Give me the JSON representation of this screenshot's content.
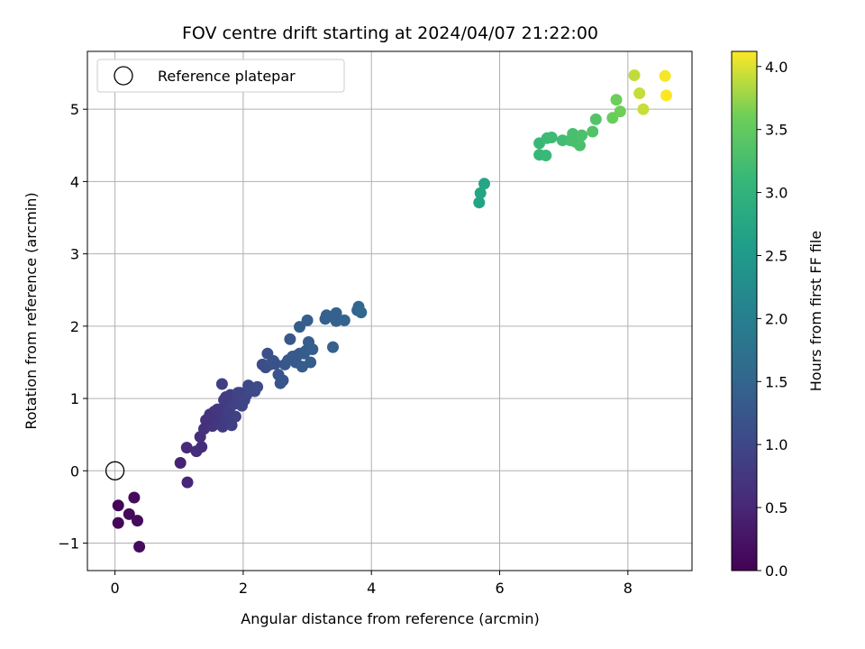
{
  "chart_data": {
    "type": "scatter",
    "title": "FOV centre drift starting at 2024/04/07 21:22:00",
    "xlabel": "Angular distance from reference (arcmin)",
    "ylabel": "Rotation from reference (arcmin)",
    "xlim": [
      -0.43,
      9.0
    ],
    "ylim": [
      -1.38,
      5.8
    ],
    "xticks": [
      0,
      2,
      4,
      6,
      8
    ],
    "yticks": [
      -1,
      0,
      1,
      2,
      3,
      4,
      5
    ],
    "grid": true,
    "legend": {
      "placement": "top-left",
      "entries": [
        "Reference platepar"
      ]
    },
    "reference_point": {
      "x": 0,
      "y": 0,
      "label": "Reference platepar"
    },
    "colorbar": {
      "label": "Hours from first FF file",
      "colormap": "viridis",
      "range": [
        0.0,
        4.12
      ],
      "ticks": [
        0.0,
        0.5,
        1.0,
        1.5,
        2.0,
        2.5,
        3.0,
        3.5,
        4.0
      ],
      "tick_labels": [
        "0.0",
        "0.5",
        "1.0",
        "1.5",
        "2.0",
        "2.5",
        "3.0",
        "3.5",
        "4.0"
      ]
    },
    "points": [
      [
        0.05,
        -0.48,
        0.05
      ],
      [
        0.05,
        -0.72,
        0.08
      ],
      [
        0.22,
        -0.6,
        0.1
      ],
      [
        0.3,
        -0.37,
        0.12
      ],
      [
        0.35,
        -0.69,
        0.13
      ],
      [
        0.38,
        -1.05,
        0.15
      ],
      [
        1.02,
        0.11,
        0.45
      ],
      [
        1.13,
        -0.16,
        0.48
      ],
      [
        1.12,
        0.32,
        0.55
      ],
      [
        1.27,
        0.27,
        0.58
      ],
      [
        1.35,
        0.33,
        0.6
      ],
      [
        1.33,
        0.47,
        0.62
      ],
      [
        1.39,
        0.58,
        0.65
      ],
      [
        1.45,
        0.72,
        0.68
      ],
      [
        1.48,
        0.78,
        0.7
      ],
      [
        1.52,
        0.62,
        0.72
      ],
      [
        1.55,
        0.82,
        0.73
      ],
      [
        1.58,
        0.65,
        0.75
      ],
      [
        1.62,
        0.7,
        0.77
      ],
      [
        1.65,
        0.78,
        0.78
      ],
      [
        1.68,
        0.61,
        0.8
      ],
      [
        1.7,
        0.98,
        0.82
      ],
      [
        1.72,
        0.88,
        0.83
      ],
      [
        1.75,
        0.73,
        0.85
      ],
      [
        1.78,
        0.83,
        0.86
      ],
      [
        1.8,
        1.05,
        0.88
      ],
      [
        1.82,
        0.63,
        0.88
      ],
      [
        1.85,
        0.92,
        0.9
      ],
      [
        1.88,
        0.75,
        0.91
      ],
      [
        1.9,
        0.95,
        0.92
      ],
      [
        1.92,
        1.0,
        0.93
      ],
      [
        1.95,
        1.08,
        0.94
      ],
      [
        1.98,
        0.9,
        0.96
      ],
      [
        2.02,
        0.98,
        0.98
      ],
      [
        2.05,
        1.05,
        1.0
      ],
      [
        2.08,
        1.18,
        1.02
      ],
      [
        2.12,
        1.12,
        1.03
      ],
      [
        2.18,
        1.1,
        1.05
      ],
      [
        2.22,
        1.16,
        1.06
      ],
      [
        1.67,
        1.2,
        0.88
      ],
      [
        1.42,
        0.7,
        0.66
      ],
      [
        1.5,
        0.75,
        0.69
      ],
      [
        1.6,
        0.85,
        0.76
      ],
      [
        1.73,
        1.02,
        0.84
      ],
      [
        1.92,
        1.08,
        0.93
      ],
      [
        2.3,
        1.47,
        1.1
      ],
      [
        2.35,
        1.43,
        1.12
      ],
      [
        2.38,
        1.62,
        1.14
      ],
      [
        2.42,
        1.47,
        1.15
      ],
      [
        2.47,
        1.52,
        1.17
      ],
      [
        2.5,
        1.48,
        1.18
      ],
      [
        2.55,
        1.33,
        1.2
      ],
      [
        2.58,
        1.21,
        1.21
      ],
      [
        2.62,
        1.25,
        1.22
      ],
      [
        2.65,
        1.47,
        1.24
      ],
      [
        2.7,
        1.53,
        1.26
      ],
      [
        2.75,
        1.55,
        1.27
      ],
      [
        2.73,
        1.82,
        1.28
      ],
      [
        2.82,
        1.5,
        1.3
      ],
      [
        2.85,
        1.6,
        1.31
      ],
      [
        2.88,
        1.62,
        1.32
      ],
      [
        2.92,
        1.44,
        1.33
      ],
      [
        2.95,
        1.62,
        1.34
      ],
      [
        2.98,
        1.66,
        1.35
      ],
      [
        3.02,
        1.78,
        1.36
      ],
      [
        3.05,
        1.5,
        1.37
      ],
      [
        3.08,
        1.68,
        1.38
      ],
      [
        2.88,
        1.99,
        1.37
      ],
      [
        3.0,
        2.08,
        1.4
      ],
      [
        3.28,
        2.1,
        1.42
      ],
      [
        3.3,
        2.15,
        1.43
      ],
      [
        3.4,
        1.71,
        1.44
      ],
      [
        3.45,
        2.07,
        1.46
      ],
      [
        3.45,
        2.18,
        1.47
      ],
      [
        3.58,
        2.08,
        1.48
      ],
      [
        3.78,
        2.22,
        1.52
      ],
      [
        3.8,
        2.27,
        1.53
      ],
      [
        3.84,
        2.19,
        1.54
      ],
      [
        2.77,
        1.58,
        1.29
      ],
      [
        5.68,
        3.71,
        2.7
      ],
      [
        5.7,
        3.84,
        2.72
      ],
      [
        5.76,
        3.97,
        2.74
      ],
      [
        6.62,
        4.37,
        3.1
      ],
      [
        6.62,
        4.53,
        3.12
      ],
      [
        6.72,
        4.36,
        3.13
      ],
      [
        6.74,
        4.6,
        3.15
      ],
      [
        6.81,
        4.61,
        3.16
      ],
      [
        6.98,
        4.57,
        3.2
      ],
      [
        7.1,
        4.57,
        3.24
      ],
      [
        7.14,
        4.66,
        3.26
      ],
      [
        7.18,
        4.55,
        3.27
      ],
      [
        7.25,
        4.5,
        3.29
      ],
      [
        7.28,
        4.64,
        3.3
      ],
      [
        7.45,
        4.69,
        3.34
      ],
      [
        7.5,
        4.86,
        3.36
      ],
      [
        7.76,
        4.88,
        3.55
      ],
      [
        7.82,
        5.13,
        3.58
      ],
      [
        7.88,
        4.97,
        3.6
      ],
      [
        8.1,
        5.47,
        3.9
      ],
      [
        8.18,
        5.22,
        3.92
      ],
      [
        8.24,
        5.0,
        3.93
      ],
      [
        8.58,
        5.46,
        4.1
      ],
      [
        8.6,
        5.19,
        4.12
      ]
    ]
  }
}
